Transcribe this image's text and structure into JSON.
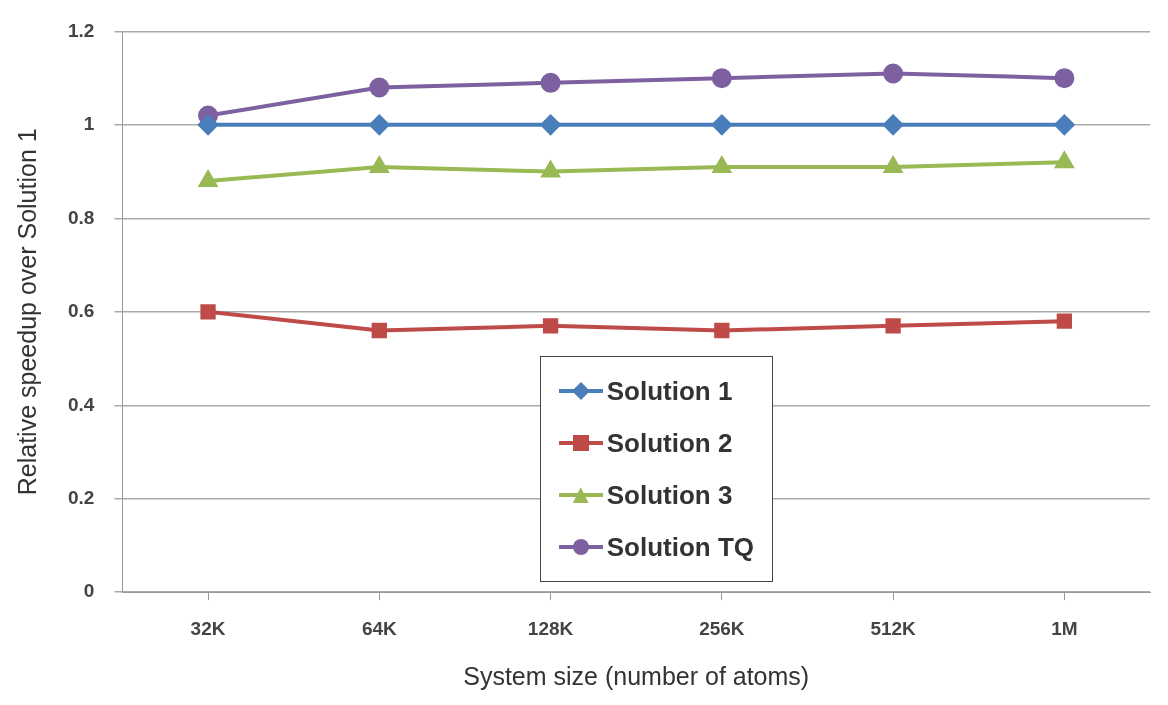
{
  "chart_data": {
    "type": "line",
    "xlabel": "System size (number of atoms)",
    "ylabel": "Relative speedup over Solution 1",
    "categories": [
      "32K",
      "64K",
      "128K",
      "256K",
      "512K",
      "1M"
    ],
    "series": [
      {
        "name": "Solution 1",
        "color": "#4a7ebb",
        "marker": "diamond",
        "values": [
          1,
          1,
          1,
          1,
          1,
          1
        ]
      },
      {
        "name": "Solution 2",
        "color": "#be4b48",
        "marker": "square",
        "values": [
          0.6,
          0.56,
          0.57,
          0.56,
          0.57,
          0.58
        ]
      },
      {
        "name": "Solution 3",
        "color": "#98b954",
        "marker": "triangle",
        "values": [
          0.88,
          0.91,
          0.9,
          0.91,
          0.91,
          0.92
        ]
      },
      {
        "name": "Solution TQ",
        "color": "#7d60a0",
        "marker": "circle",
        "values": [
          1.02,
          1.08,
          1.09,
          1.1,
          1.11,
          1.1
        ]
      }
    ],
    "ylim": [
      0,
      1.2
    ],
    "yticks": [
      0,
      0.2,
      0.4,
      0.6,
      0.8,
      1,
      1.2
    ],
    "grid": "y",
    "legend": "bottom"
  }
}
